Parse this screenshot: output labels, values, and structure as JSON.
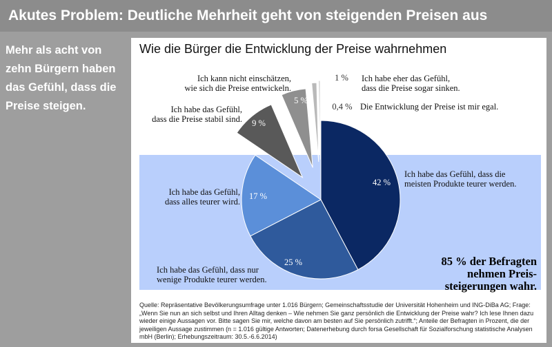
{
  "header": {
    "title": "Akutes Problem: Deutliche Mehrheit geht von steigenden Preisen aus"
  },
  "side_note": "Mehr als acht von zehn Bürgern haben das Gefühl, dass die Preise steigen.",
  "colors": {
    "background": "#9e9e9e",
    "highlight_box": "#b9cffc",
    "slice_42": "#0b2863",
    "slice_25": "#2f5a9c",
    "slice_17": "#5b8fd9",
    "slice_9": "#595959",
    "slice_5": "#8f8f8f",
    "slice_1": "#b9b9b9",
    "slice_04": "#dcdcdc"
  },
  "chart_data": {
    "type": "pie",
    "title": "Wie die Bürger die Entwicklung der Preise wahrnehmen",
    "slices": [
      {
        "label": "Ich habe das Gefühl, dass die meisten Produkte teurer werden.",
        "value": 42,
        "pct_label": "42 %",
        "label_lines": [
          "Ich habe das Gefühl, dass die",
          "meisten Produkte teurer werden."
        ]
      },
      {
        "label": "Ich habe das Gefühl, dass nur wenige Produkte teurer werden.",
        "value": 25,
        "pct_label": "25 %",
        "label_lines": [
          "Ich habe das Gefühl, dass nur",
          "wenige Produkte teurer werden."
        ]
      },
      {
        "label": "Ich habe das Gefühl, dass alles teurer wird.",
        "value": 17,
        "pct_label": "17 %",
        "label_lines": [
          "Ich habe das Gefühl,",
          "dass alles teurer wird."
        ]
      },
      {
        "label": "Ich habe das Gefühl, dass die Preise stabil sind.",
        "value": 9,
        "pct_label": "9 %",
        "label_lines": [
          "Ich habe das Gefühl,",
          "dass die Preise stabil sind."
        ]
      },
      {
        "label": "Ich kann nicht einschätzen, wie sich die Preise entwickeln.",
        "value": 5,
        "pct_label": "5 %",
        "label_lines": [
          "Ich kann nicht einschätzen,",
          "wie sich die Preise entwickeln."
        ]
      },
      {
        "label": "Ich habe eher das Gefühl, dass die Preise sogar sinken.",
        "value": 1,
        "pct_label": "1 %",
        "label_lines": [
          "Ich habe eher das Gefühl,",
          "dass die Preise sogar sinken."
        ]
      },
      {
        "label": "Die Entwicklung der Preise ist mir egal.",
        "value": 0.4,
        "pct_label": "0,4 %",
        "label_lines": [
          "Die Entwicklung der Preise ist mir egal."
        ]
      }
    ],
    "callout": [
      "85 % der Befragten",
      "nehmen Preis-",
      "steigerungen wahr."
    ]
  },
  "source": "Quelle: Repräsentative Bevölkerungsumfrage unter 1.016 Bürgern; Gemeinschaftsstudie der Universität Hohenheim und ING-DiBa AG; Frage: „Wenn Sie nun an sich selbst und Ihren Alltag denken – Wie nehmen Sie ganz persönlich die Entwicklung der Preise wahr? Ich lese Ihnen dazu wieder einige Aussagen vor. Bitte sagen Sie mir, welche davon am besten auf Sie persönlich zutrifft.“; Anteile der Befragten in Prozent, die der jeweiligen Aussage zustimmen (n = 1.016 gültige Antworten; Datenerhebung durch forsa Gesellschaft für Sozialforschung statistische Analysen mbH (Berlin); Erhebungszeitraum: 30.5.-6.6.2014)"
}
